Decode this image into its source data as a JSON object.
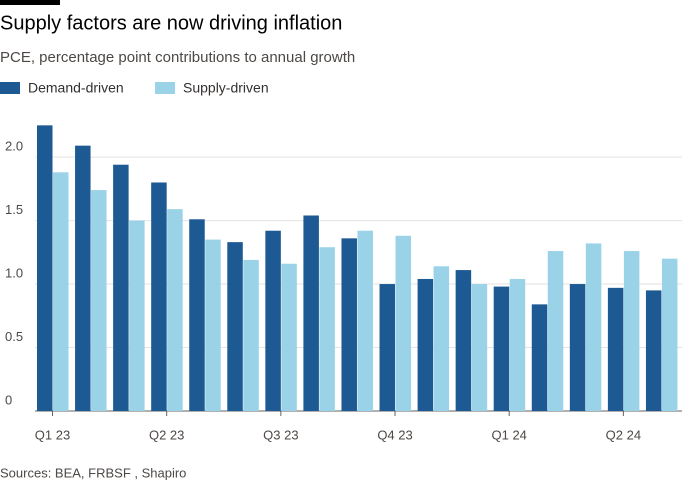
{
  "chart_data": {
    "type": "bar",
    "title": "Supply factors are now driving inflation",
    "subtitle": "PCE, percentage point contributions to annual growth",
    "source": "Sources: BEA, FRBSF , Shapiro",
    "categories": [
      "Q1 23",
      null,
      null,
      "Q2 23",
      null,
      null,
      "Q3 23",
      null,
      null,
      "Q4 23",
      null,
      null,
      "Q1 24",
      null,
      null,
      "Q2 24",
      null
    ],
    "series": [
      {
        "name": "Demand-driven",
        "color": "#1d5a94",
        "values": [
          2.25,
          2.09,
          1.94,
          1.8,
          1.51,
          1.33,
          1.42,
          1.54,
          1.36,
          1.0,
          1.04,
          1.11,
          0.98,
          0.84,
          1.0,
          0.97,
          0.95
        ]
      },
      {
        "name": "Supply-driven",
        "color": "#9ad3e8",
        "values": [
          1.88,
          1.74,
          1.5,
          1.59,
          1.35,
          1.19,
          1.16,
          1.29,
          1.42,
          1.38,
          1.14,
          1.0,
          1.04,
          1.26,
          1.32,
          1.26,
          1.2
        ]
      }
    ],
    "ylim": [
      0,
      2.3
    ],
    "yticks": [
      0,
      0.5,
      {
        "value": 1,
        "label": "1.0"
      },
      1.5,
      {
        "value": 2,
        "label": "2.0"
      }
    ],
    "grid": true
  }
}
